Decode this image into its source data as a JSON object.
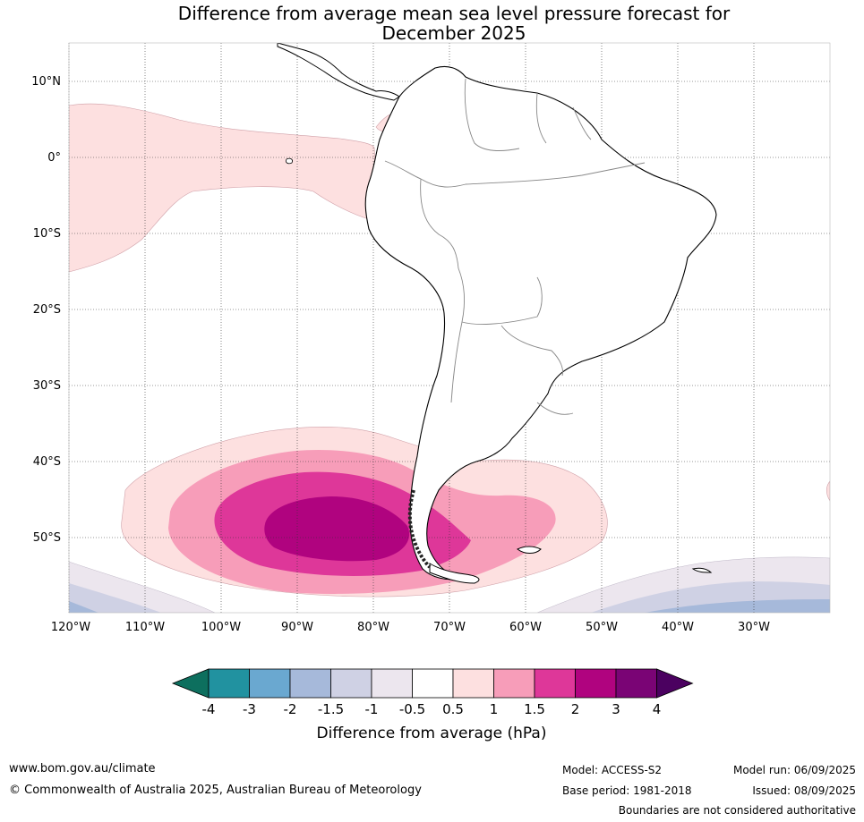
{
  "title": {
    "line1": "Difference from average mean sea level pressure forecast for",
    "line2": "December 2025"
  },
  "map": {
    "lat_labels": [
      "10°N",
      "0°",
      "10°S",
      "20°S",
      "30°S",
      "40°S",
      "50°S"
    ],
    "lon_labels": [
      "120°W",
      "110°W",
      "100°W",
      "90°W",
      "80°W",
      "70°W",
      "60°W",
      "50°W",
      "40°W",
      "30°W"
    ],
    "gridlines": "dotted"
  },
  "colorbar": {
    "tick_labels": [
      "-4",
      "-3",
      "-2",
      "-1.5",
      "-1",
      "-0.5",
      "0.5",
      "1",
      "1.5",
      "2",
      "3",
      "4"
    ],
    "colors": [
      "#0d6f5e",
      "#2192a0",
      "#6aa8d0",
      "#a6b9da",
      "#cfd1e4",
      "#ece6ee",
      "#ffffff",
      "#fde0e0",
      "#f79db9",
      "#de3799",
      "#b0037f",
      "#7a0475",
      "#4b0160"
    ],
    "label": "Difference from average (hPa)"
  },
  "footer": {
    "website": "www.bom.gov.au/climate",
    "copyright": "© Commonwealth of Australia 2025, Australian Bureau of Meteorology",
    "model": "Model: ACCESS-S2",
    "base_period": "Base period: 1981-2018",
    "model_run": "Model run: 06/09/2025",
    "issued": "Issued: 08/09/2025",
    "disclaimer": "Boundaries are not considered authoritative"
  }
}
